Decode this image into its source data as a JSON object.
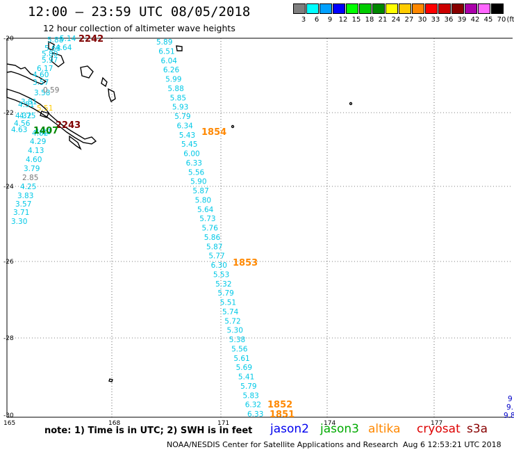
{
  "header": {
    "title": "12:00 – 23:59 UTC 08/05/2018",
    "subtitle": "12 hour collection of altimeter wave heights"
  },
  "legend_scale": {
    "unit": "(ft)",
    "bins": [
      {
        "label": "3",
        "color": "#7f7f7f"
      },
      {
        "label": "6",
        "color": "#00ffff"
      },
      {
        "label": "9",
        "color": "#00a0ff"
      },
      {
        "label": "12",
        "color": "#0000ff"
      },
      {
        "label": "15",
        "color": "#00ff00"
      },
      {
        "label": "18",
        "color": "#00cc00"
      },
      {
        "label": "21",
        "color": "#008800"
      },
      {
        "label": "24",
        "color": "#ffff00"
      },
      {
        "label": "27",
        "color": "#ffcc00"
      },
      {
        "label": "30",
        "color": "#ff8800"
      },
      {
        "label": "33",
        "color": "#ff0000"
      },
      {
        "label": "36",
        "color": "#cc0000"
      },
      {
        "label": "39",
        "color": "#880000"
      },
      {
        "label": "42",
        "color": "#aa00aa"
      },
      {
        "label": "45",
        "color": "#ff66ff"
      },
      {
        "label": "70",
        "color": "#000000"
      }
    ]
  },
  "axes": {
    "lat_labels": [
      "-20",
      "-22",
      "-24",
      "-26",
      "-28",
      "-30"
    ],
    "lon_labels": [
      "165",
      "168",
      "171",
      "174",
      "177"
    ]
  },
  "tracks": {
    "main": {
      "color": "#00c8e6",
      "values": [
        "5.89",
        "6.51",
        "6.04",
        "6.26",
        "5.99",
        "5.88",
        "5.85",
        "5.93",
        "5.79",
        "6.34",
        "5.43",
        "5.45",
        "6.00",
        "6.33",
        "5.56",
        "5.90",
        "5.87",
        "5.80",
        "5.64",
        "5.73",
        "5.76",
        "5.86",
        "5.87",
        "5.77",
        "6.30",
        "5.53",
        "5.32",
        "5.79",
        "5.51",
        "5.74",
        "5.72",
        "5.30",
        "5.38",
        "5.56",
        "5.61",
        "5.69",
        "5.41",
        "5.79",
        "5.83",
        "6.32",
        "6.33"
      ]
    },
    "west": {
      "color": "#00c8e6",
      "values": [
        "5.88",
        "5.68",
        "5.80",
        "5.97",
        "6.17",
        "4.60",
        "3.57",
        "3.58",
        "3.81",
        "4.75",
        "4.32",
        "4.56",
        "4.63",
        "4.32",
        "4.82",
        "4.29",
        "4.13",
        "4.60",
        "3.79",
        "4.25",
        "3.83",
        "3.57",
        "3.71",
        "3.30"
      ],
      "grey_values": [
        "0.59",
        "2.85"
      ],
      "top_values": [
        "5.14",
        "4.64"
      ],
      "yellow_values": [
        "5.51"
      ],
      "green_values": [
        "4.51"
      ]
    },
    "east": {
      "color": "#0000c8",
      "values": [
        "9",
        "9.",
        "9.8"
      ]
    }
  },
  "time_stamps": [
    {
      "label": "2242",
      "color": "#800000"
    },
    {
      "label": "2243",
      "color": "#800000"
    },
    {
      "label": "1407",
      "color": "#008800"
    },
    {
      "label": "1854",
      "color": "#ff8800"
    },
    {
      "label": "1853",
      "color": "#ff8800"
    },
    {
      "label": "1852",
      "color": "#ff8800"
    },
    {
      "label": "1851",
      "color": "#ff8800"
    }
  ],
  "footer": {
    "note": "note:  1) Time is in UTC;  2) SWH is in feet",
    "satellites": [
      {
        "name": "jason2",
        "color": "#0000ee"
      },
      {
        "name": "jason3",
        "color": "#00aa00"
      },
      {
        "name": "altika",
        "color": "#ff8800"
      },
      {
        "name": "cryosat",
        "color": "#dd0000"
      },
      {
        "name": "s3a",
        "color": "#880000"
      }
    ],
    "credit": "NOAA/NESDIS Center for Satellite Applications and Research",
    "timestamp": "Aug  6 12:53:21 UTC 2018"
  }
}
